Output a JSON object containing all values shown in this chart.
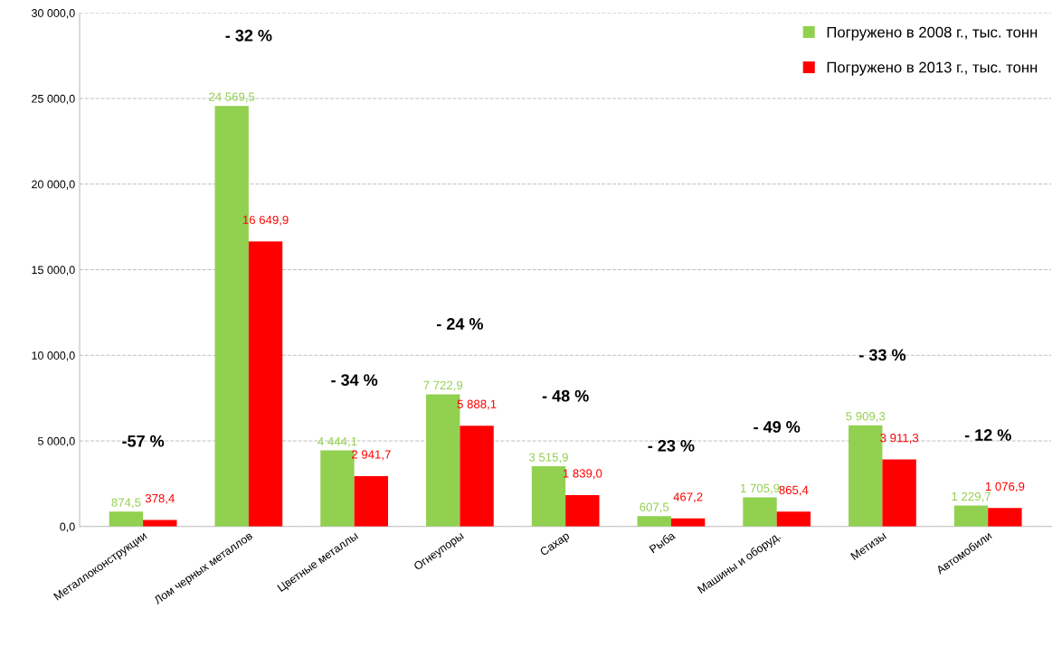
{
  "chart_data": {
    "type": "bar",
    "categories": [
      "Металлоконструкции",
      "Лом черных металлов",
      "Цветные металлы",
      "Огнеупоры",
      "Сахар",
      "Рыба",
      "Машины и оборуд.",
      "Метизы",
      "Автомобили"
    ],
    "series": [
      {
        "name": "Погружено в 2008 г., тыс. тонн",
        "color": "#92d050",
        "values": [
          874.5,
          24569.5,
          4444.1,
          7722.9,
          3515.9,
          607.5,
          1705.9,
          5909.3,
          1229.7
        ],
        "value_labels": [
          "874,5",
          "24 569,5",
          "4 444,1",
          "7 722,9",
          "3 515,9",
          "607,5",
          "1 705,9",
          "5 909,3",
          "1 229,7"
        ]
      },
      {
        "name": "Погружено в 2013 г., тыс. тонн",
        "color": "#ff0000",
        "values": [
          378.4,
          16649.9,
          2941.7,
          5888.1,
          1839.0,
          467.2,
          865.4,
          3911.3,
          1076.9
        ],
        "value_labels": [
          "378,4",
          "16 649,9",
          "2 941,7",
          "5 888,1",
          "1 839,0",
          "467,2",
          "865,4",
          "3 911,3",
          "1 076,9"
        ]
      }
    ],
    "ylim": [
      0,
      30000
    ],
    "yticks": [
      {
        "value": 0,
        "label": "0,0"
      },
      {
        "value": 5000,
        "label": "5 000,0"
      },
      {
        "value": 10000,
        "label": "10 000,0"
      },
      {
        "value": 15000,
        "label": "15 000,0"
      },
      {
        "value": 20000,
        "label": "20 000,0"
      },
      {
        "value": 25000,
        "label": "25 000,0"
      },
      {
        "value": 30000,
        "label": "30 000,0"
      }
    ],
    "grid": "y",
    "legend": "top right",
    "annotations": [
      "-57 %",
      "- 32 %",
      "- 34 %",
      "- 24 %",
      "- 48 %",
      "- 23 %",
      "- 49 %",
      "- 33 %",
      "- 12 %"
    ]
  }
}
